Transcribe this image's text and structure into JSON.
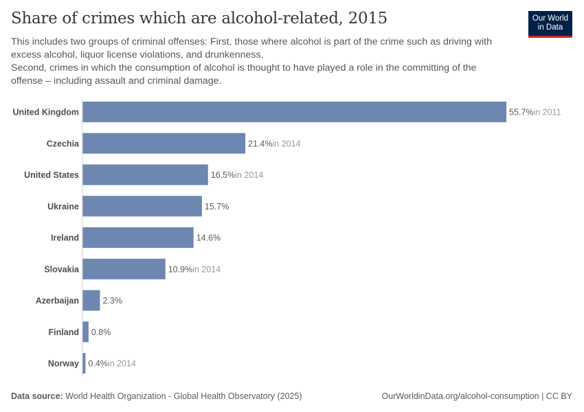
{
  "header": {
    "title": "Share of crimes which are alcohol-related, 2015",
    "subtitle_lines": [
      "This includes two groups of criminal offenses: First, those where alcohol is part of the crime such as driving with excess alcohol, liquor license violations, and drunkenness.",
      "Second, crimes in which the consumption of alcohol is thought to have played a role in the committing of the offense – including assault and criminal damage."
    ],
    "logo_text": "Our World in Data"
  },
  "chart_data": {
    "type": "bar",
    "orientation": "horizontal",
    "title": "Share of crimes which are alcohol-related, 2015",
    "categories": [
      "United Kingdom",
      "Czechia",
      "United States",
      "Ukraine",
      "Ireland",
      "Slovakia",
      "Azerbaijan",
      "Finland",
      "Norway"
    ],
    "values": [
      55.7,
      21.4,
      16.5,
      15.7,
      14.6,
      10.9,
      2.3,
      0.8,
      0.4
    ],
    "value_labels": [
      "55.7%",
      "21.4%",
      "16.5%",
      "15.7%",
      "14.6%",
      "10.9%",
      "2.3%",
      "0.8%",
      "0.4%"
    ],
    "year_notes": [
      "in 2011",
      "in 2014",
      "in 2014",
      "",
      "",
      "in 2014",
      "",
      "",
      "in 2014"
    ],
    "unit": "%",
    "bar_color": "#6d87b0",
    "grid": false
  },
  "footer": {
    "source_label": "Data source:",
    "source_text": "World Health Organization - Global Health Observatory (2025)",
    "url_text": "OurWorldinData.org/alcohol-consumption | CC BY"
  }
}
